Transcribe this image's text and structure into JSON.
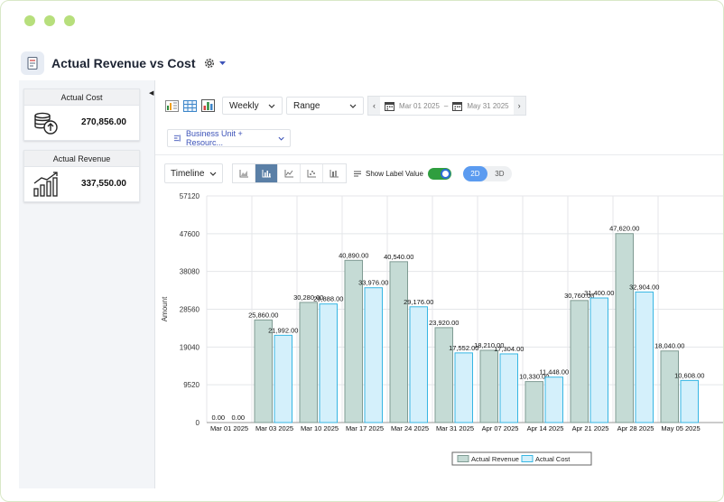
{
  "window": {
    "title": "Actual Revenue vs Cost"
  },
  "icons": {
    "report": "report-icon",
    "settings": "gear-icon",
    "dropdown": "caret-down-icon"
  },
  "cards": [
    {
      "label": "Actual Cost",
      "value": "270,856.00",
      "icon": "coins-up-icon"
    },
    {
      "label": "Actual Revenue",
      "value": "337,550.00",
      "icon": "growth-chart-icon"
    }
  ],
  "toolbar": {
    "period": "Weekly",
    "range": "Range",
    "start_date": "Mar 01 2025",
    "end_date": "May 31 2025",
    "date_separator": "–",
    "group_by": "Business Unit + Resourc...",
    "view_mode": "Timeline",
    "show_label_value": "Show Label Value",
    "show_label_value_on": true,
    "mode_2d": "2D",
    "mode_3d": "3D",
    "active_mode": "2D"
  },
  "colors": {
    "revenue_fill": "#c5dbd5",
    "revenue_stroke": "#7f9b93",
    "cost_fill": "#d4f0fb",
    "cost_stroke": "#37b6e3",
    "accent": "#5b9bf0",
    "toggle_on": "#2f9e3f"
  },
  "chart_data": {
    "type": "bar",
    "ylabel": "Amount",
    "ylim": [
      0,
      57120
    ],
    "yticks": [
      "0",
      "9520",
      "19040",
      "28560",
      "38080",
      "47600",
      "57120"
    ],
    "categories": [
      "Mar 01 2025",
      "Mar 03 2025",
      "Mar 10 2025",
      "Mar 17 2025",
      "Mar 24 2025",
      "Mar 31 2025",
      "Apr 07 2025",
      "Apr 14 2025",
      "Apr 21 2025",
      "Apr 28 2025",
      "May 05 2025"
    ],
    "series": [
      {
        "name": "Actual Revenue",
        "values": [
          0,
          25860,
          30280,
          40890,
          40540,
          23920,
          18210,
          10330,
          30760,
          47620,
          18040
        ],
        "labels": [
          "0.00",
          "25,860.00",
          "30,280.00",
          "40,890.00",
          "40,540.00",
          "23,920.00",
          "18,210.00",
          "10,330.00",
          "30,760.00",
          "47,620.00",
          "18,040.00"
        ]
      },
      {
        "name": "Actual Cost",
        "values": [
          0,
          21992,
          29888,
          33976,
          29176,
          17552,
          17304,
          11448,
          31400,
          32904,
          10608
        ],
        "labels": [
          "0.00",
          "21,992.00",
          "29,888.00",
          "33,976.00",
          "29,176.00",
          "17,552.00",
          "17,304.00",
          "11,448.00",
          "31,400.00",
          "32,904.00",
          "10,608.00"
        ]
      }
    ],
    "grid": true,
    "legend_position": "bottom-center"
  }
}
